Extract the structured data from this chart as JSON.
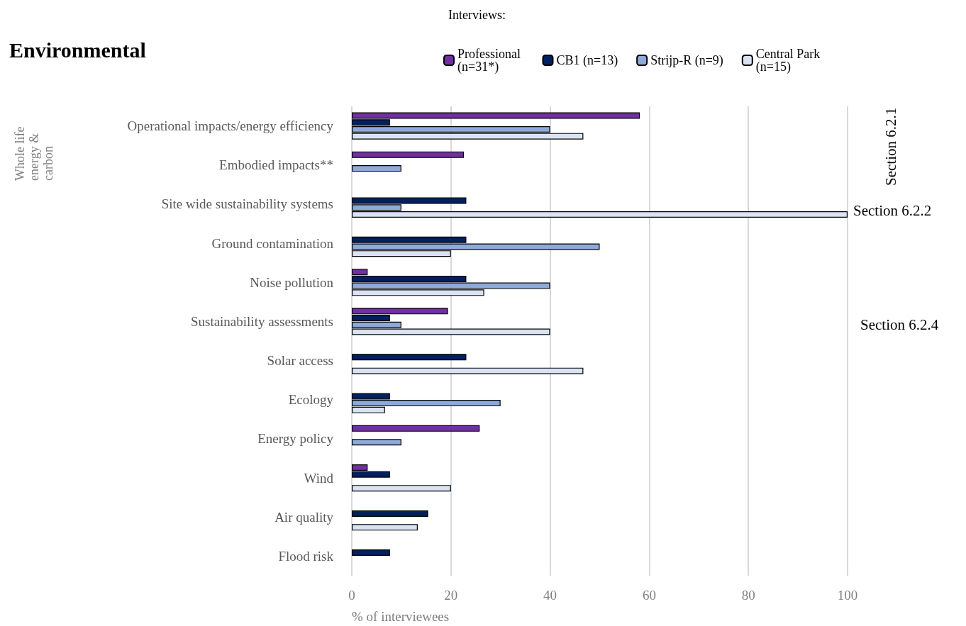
{
  "chart_data": {
    "type": "bar",
    "orientation": "horizontal",
    "title": "Environmental",
    "legend_title": "Interviews:",
    "xlabel": "% of interviewees",
    "categories": [
      "Operational impacts/energy efficiency",
      "Embodied impacts**",
      "Site wide sustainability systems",
      "Ground contamination",
      "Noise pollution",
      "Sustainability assessments",
      "Solar access",
      "Ecology",
      "Energy policy",
      "Wind",
      "Air quality",
      "Flood risk"
    ],
    "series": [
      {
        "name": "Professional (n=31*)",
        "color": "#7030a0",
        "values": [
          58.1,
          22.6,
          null,
          null,
          3.2,
          19.4,
          null,
          null,
          25.8,
          3.2,
          null,
          null
        ]
      },
      {
        "name": "CB1 (n=13)",
        "color": "#002060",
        "values": [
          7.7,
          null,
          23.1,
          23.1,
          23.1,
          7.7,
          23.1,
          7.7,
          null,
          7.7,
          15.4,
          7.7
        ]
      },
      {
        "name": "Strijp-R (n=9)",
        "color": "#8eaadb",
        "values": [
          40,
          10,
          10,
          50,
          40,
          10,
          null,
          30,
          10,
          null,
          null,
          null
        ]
      },
      {
        "name": "Central Park (n=15)",
        "color": "#dae3f3",
        "values": [
          46.7,
          null,
          100,
          20,
          26.7,
          40,
          46.7,
          6.7,
          null,
          20,
          13.3,
          null
        ]
      }
    ],
    "xlim": [
      0,
      100
    ],
    "xticks": [
      0,
      20,
      40,
      60,
      80,
      100
    ],
    "grid": "x",
    "legend": "top",
    "annotations": [
      "Whole life energy & carbon",
      "Section 6.2.1",
      "Section 6.2.2",
      "Section 6.2.4"
    ]
  }
}
